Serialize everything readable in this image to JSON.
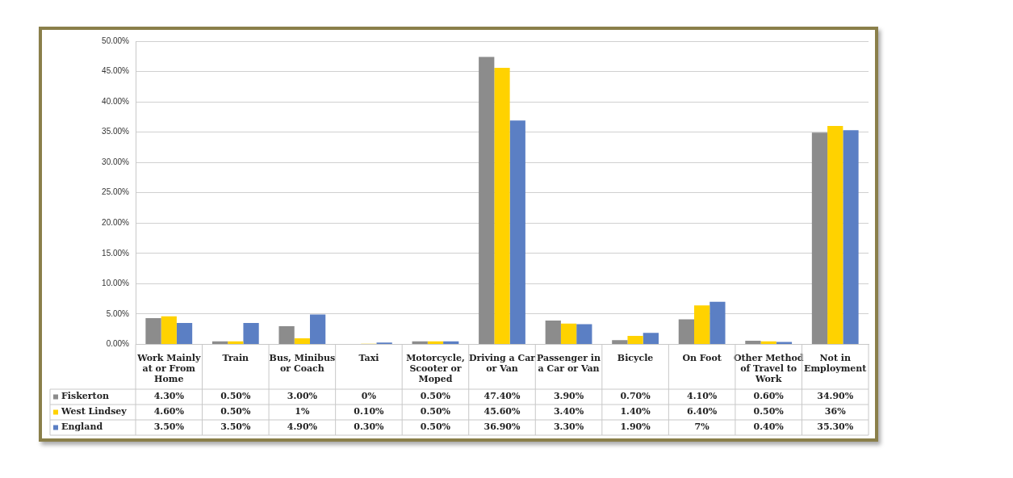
{
  "chart_data": {
    "type": "bar",
    "categories": [
      "Work Mainly at or From Home",
      "Train",
      "Bus, Minibus or Coach",
      "Taxi",
      "Motorcycle, Scooter or Moped",
      "Driving a Car or Van",
      "Passenger in a Car or Van",
      "Bicycle",
      "On Foot",
      "Other Method of Travel to Work",
      "Not in Employment"
    ],
    "series": [
      {
        "name": "Fiskerton",
        "color": "#8c8c8c",
        "values": [
          4.3,
          0.5,
          3.0,
          0,
          0.5,
          47.4,
          3.9,
          0.7,
          4.1,
          0.6,
          34.9
        ],
        "value_labels": [
          "4.30%",
          "0.50%",
          "3.00%",
          "0%",
          "0.50%",
          "47.40%",
          "3.90%",
          "0.70%",
          "4.10%",
          "0.60%",
          "34.90%"
        ]
      },
      {
        "name": "West Lindsey",
        "color": "#ffd200",
        "values": [
          4.6,
          0.5,
          1,
          0.1,
          0.5,
          45.6,
          3.4,
          1.4,
          6.4,
          0.5,
          36
        ],
        "value_labels": [
          "4.60%",
          "0.50%",
          "1%",
          "0.10%",
          "0.50%",
          "45.60%",
          "3.40%",
          "1.40%",
          "6.40%",
          "0.50%",
          "36%"
        ]
      },
      {
        "name": "England",
        "color": "#5b7fc4",
        "values": [
          3.5,
          3.5,
          4.9,
          0.3,
          0.5,
          36.9,
          3.3,
          1.9,
          7,
          0.4,
          35.3
        ],
        "value_labels": [
          "3.50%",
          "3.50%",
          "4.90%",
          "0.30%",
          "0.50%",
          "36.90%",
          "3.30%",
          "1.90%",
          "7%",
          "0.40%",
          "35.30%"
        ]
      }
    ],
    "ylim": [
      0,
      50
    ],
    "yticks": [
      {
        "value": 0,
        "label": "0.00%"
      },
      {
        "value": 5,
        "label": "5.00%"
      },
      {
        "value": 10,
        "label": "10.00%"
      },
      {
        "value": 15,
        "label": "15.00%"
      },
      {
        "value": 20,
        "label": "20.00%"
      },
      {
        "value": 25,
        "label": "25.00%"
      },
      {
        "value": 30,
        "label": "30.00%"
      },
      {
        "value": 35,
        "label": "35.00%"
      },
      {
        "value": 40,
        "label": "40.00%"
      },
      {
        "value": 45,
        "label": "45.00%"
      },
      {
        "value": 50,
        "label": "50.00%"
      }
    ],
    "grid": "y",
    "legend": "bottom left"
  }
}
